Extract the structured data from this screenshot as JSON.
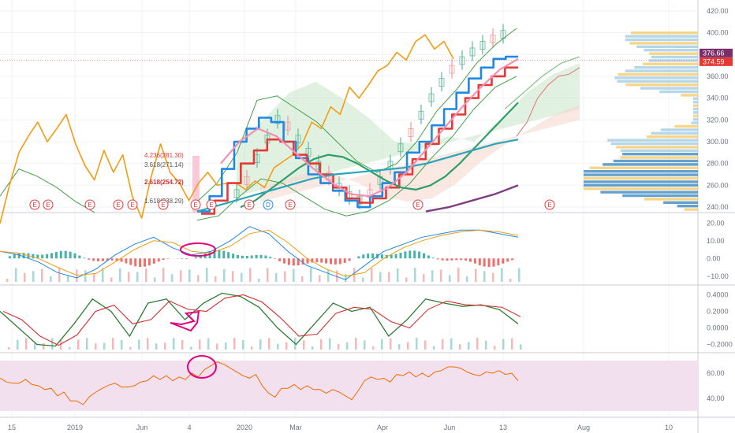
{
  "colors": {
    "price_orange": "#f39c12",
    "blue_line": "#1e88e5",
    "red_line": "#e53935",
    "pink_line": "#f48fb1",
    "green_line": "#2e9e6b",
    "teal_line": "#26a6b8",
    "purple_line": "#7b3f7f",
    "candle": "#5fb89a",
    "cloud_green": "#c8e6c9",
    "cloud_red": "#f6d2c8",
    "rsi_band": "#f3e0ee",
    "annotation": "#e6007e",
    "last_price_badge": "#7a2f6b",
    "price_badge_red": "#e53935"
  },
  "chart_data": [
    {
      "pane": "price",
      "type": "line",
      "y_ticks": [
        "420.00",
        "400.00",
        "380.00",
        "360.00",
        "340.00",
        "320.00",
        "300.00",
        "280.00",
        "260.00",
        "240.00"
      ],
      "ylim": [
        235,
        430
      ],
      "x_labels": [
        "15",
        "2019",
        "Jun",
        "4",
        "2020",
        "Mar",
        "Apr",
        "Jun",
        "13",
        "Aug",
        "10"
      ],
      "price_labels": [
        "376.66",
        "374.59"
      ],
      "fib_labels": [
        "4.236(281.30)",
        "3.618(271.14)",
        "2.618(254.72)",
        "1.618(238.29)"
      ],
      "event_markers": [
        "E",
        "E",
        "E",
        "E",
        "E",
        "E",
        "E",
        "E",
        "E",
        "D",
        "E",
        "E",
        "E"
      ],
      "series": [
        {
          "name": "",
          "color": "#f39c12",
          "values": [
            225,
            260,
            290,
            305,
            318,
            300,
            312,
            325,
            298,
            278,
            265,
            292,
            272,
            288,
            250,
            230,
            268,
            298,
            272,
            262,
            246,
            262,
            272,
            260,
            262,
            262,
            256,
            264,
            258,
            276,
            282,
            288,
            298,
            318,
            312,
            332,
            325,
            350,
            340,
            352,
            365,
            370,
            382,
            375,
            392,
            398,
            385,
            392,
            376
          ]
        },
        {
          "name": "",
          "color": "#1e88e5",
          "values": [
            236,
            250,
            275,
            300,
            312,
            322,
            318,
            300,
            285,
            270,
            262,
            255,
            246,
            240,
            250,
            262,
            272,
            290,
            300,
            315,
            330,
            345,
            358,
            368,
            376,
            378
          ]
        },
        {
          "name": "",
          "color": "#e53935",
          "values": [
            234,
            246,
            262,
            280,
            292,
            302,
            300,
            288,
            280,
            270,
            258,
            248,
            244,
            248,
            258,
            270,
            284,
            298,
            312,
            325,
            340,
            352,
            360,
            368
          ]
        },
        {
          "name": "",
          "color": "#2e9e6b",
          "values": [
            240,
            246,
            256,
            266,
            276,
            284,
            288,
            286,
            280,
            272,
            264,
            258,
            256,
            260,
            268,
            280,
            294,
            308,
            322,
            336
          ]
        },
        {
          "name": "",
          "color": "#26a6b8",
          "values": [
            236,
            242,
            248,
            254,
            260,
            266,
            270,
            272,
            274,
            276,
            280,
            286,
            292,
            298,
            302
          ]
        }
      ]
    },
    {
      "pane": "macd",
      "type": "line",
      "y_ticks": [
        "20.00",
        "10.00",
        "0.00",
        "−10.00"
      ],
      "ylim": [
        -15,
        25
      ],
      "values": [
        4,
        2,
        -2,
        -8,
        -11,
        -6,
        2,
        8,
        12,
        6,
        2,
        4,
        10,
        18,
        14,
        4,
        -4,
        -8,
        -12,
        -4,
        4,
        8,
        12,
        14,
        16,
        16,
        14,
        12
      ]
    },
    {
      "pane": "oscillator",
      "type": "line",
      "y_ticks": [
        "0.4000",
        "0.2000",
        "0.0000",
        "−0.2000"
      ],
      "ylim": [
        -0.3,
        0.5
      ],
      "values": [
        0.2,
        0.0,
        -0.2,
        -0.22,
        0.05,
        0.35,
        0.2,
        -0.1,
        0.3,
        0.35,
        0.1,
        0.3,
        0.42,
        0.38,
        0.25,
        0.0,
        -0.2,
        0.05,
        0.3,
        0.2,
        0.25,
        -0.1,
        0.1,
        0.35,
        0.3,
        0.26,
        0.28,
        0.22,
        0.05
      ]
    },
    {
      "pane": "rsi",
      "type": "line",
      "y_ticks": [
        "60.00",
        "40.00"
      ],
      "ylim": [
        25,
        75
      ],
      "values": [
        56,
        52,
        50,
        42,
        38,
        45,
        52,
        50,
        58,
        54,
        60,
        66,
        64,
        56,
        44,
        48,
        50,
        44,
        42,
        54,
        56,
        58,
        60,
        62,
        64,
        58,
        62,
        54
      ]
    }
  ]
}
